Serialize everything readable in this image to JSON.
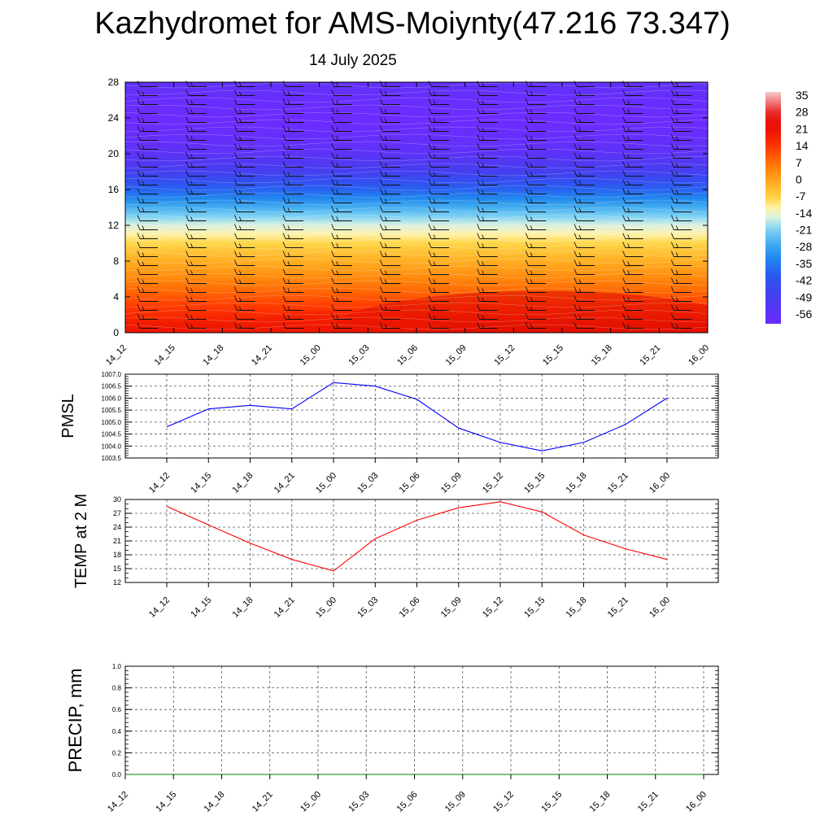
{
  "header": {
    "title": "Kazhydromet for AMS-Moiynty(47.216 73.347)",
    "subtitle": "14 July 2025"
  },
  "chart_data": [
    {
      "type": "heatmap",
      "title": "",
      "xlabel": "",
      "ylabel": "",
      "x_ticks": [
        "14_12",
        "14_15",
        "14_18",
        "14_21",
        "15_00",
        "15_03",
        "15_06",
        "15_09",
        "15_12",
        "15_15",
        "15_18",
        "15_21",
        "16_00"
      ],
      "y_ticks": [
        0,
        4,
        8,
        12,
        16,
        20,
        24,
        28
      ],
      "ylim": [
        0,
        28
      ],
      "colorbar": {
        "labels": [
          35,
          28,
          21,
          14,
          7,
          0,
          -7,
          -14,
          -21,
          -28,
          -35,
          -42,
          -49,
          -56
        ],
        "range": [
          -60,
          38
        ]
      },
      "levels": [
        0,
        1,
        2,
        3,
        4,
        5,
        6,
        7,
        8,
        9,
        10,
        11,
        12,
        13,
        14,
        15,
        16,
        17,
        18,
        19,
        20,
        21,
        22,
        23,
        24,
        25,
        26,
        27,
        28
      ],
      "temperature_profile": [
        22,
        20,
        17,
        14,
        11,
        8,
        5,
        2,
        -1,
        -4,
        -7,
        -11,
        -15,
        -20,
        -26,
        -32,
        -38,
        -43,
        -48,
        -52,
        -55,
        -57,
        -58,
        -59,
        -60,
        -59,
        -58,
        -57,
        -57
      ],
      "wind_barbs": "present"
    },
    {
      "type": "line",
      "title": "",
      "ylabel": "PMSL",
      "categories": [
        "14_12",
        "14_15",
        "14_18",
        "14_21",
        "15_00",
        "15_03",
        "15_06",
        "15_09",
        "15_12",
        "15_15",
        "15_18",
        "15_21",
        "16_00"
      ],
      "y_ticks": [
        "1003.5",
        "1004.0",
        "1004.5",
        "1005.0",
        "1005.5",
        "1006.0",
        "1006.5",
        "1007.0"
      ],
      "ylim": [
        1003.5,
        1007.0
      ],
      "grid": true,
      "series": [
        {
          "color": "#0000ff",
          "values": [
            1004.8,
            1005.55,
            1005.7,
            1005.55,
            1006.65,
            1006.5,
            1005.95,
            1004.75,
            1004.15,
            1003.8,
            1004.15,
            1004.9,
            1006.0
          ]
        }
      ]
    },
    {
      "type": "line",
      "title": "",
      "ylabel": "TEMP at 2 M",
      "categories": [
        "14_12",
        "14_15",
        "14_18",
        "14_21",
        "15_00",
        "15_03",
        "15_06",
        "15_09",
        "15_12",
        "15_15",
        "15_18",
        "15_21",
        "16_00"
      ],
      "y_ticks": [
        12,
        15,
        18,
        21,
        24,
        27,
        30
      ],
      "ylim": [
        12,
        30
      ],
      "grid": true,
      "series": [
        {
          "color": "#ff0000",
          "values": [
            28.5,
            24.5,
            20.5,
            17.0,
            14.5,
            21.5,
            25.5,
            28.2,
            29.5,
            27.3,
            22.3,
            19.3,
            17.0
          ]
        }
      ]
    },
    {
      "type": "line",
      "title": "",
      "ylabel": "PRECIP, mm",
      "categories": [
        "14_12",
        "14_15",
        "14_18",
        "14_21",
        "15_00",
        "15_03",
        "15_06",
        "15_09",
        "15_12",
        "15_15",
        "15_18",
        "15_21",
        "16_00"
      ],
      "y_ticks": [
        "0.0",
        "0.2",
        "0.4",
        "0.6",
        "0.8",
        "1.0"
      ],
      "ylim": [
        0,
        1.0
      ],
      "grid": true,
      "series": [
        {
          "color": "#008000",
          "values": [
            0,
            0,
            0,
            0,
            0,
            0,
            0,
            0,
            0,
            0,
            0,
            0,
            0
          ]
        }
      ]
    }
  ]
}
